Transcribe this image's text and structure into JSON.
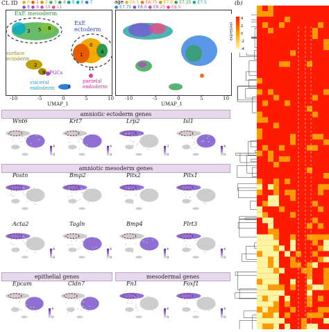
{
  "header": {
    "cl_id_label": "CL ID",
    "cluster_ids": [
      "0",
      "1",
      "2",
      "3",
      "4",
      "5",
      "6",
      "7",
      "8",
      "9",
      "10",
      "11"
    ],
    "age_label": "age",
    "ages": [
      "E6.5",
      "E6.75",
      "E7.0",
      "E7.25",
      "E7.5",
      "E7.75",
      "E8.0",
      "E8.25",
      "E8.5"
    ],
    "panel_b_label": "(b)"
  },
  "umap_left": {
    "regions": {
      "exe_mesoderm": "ExE mesoderm",
      "exe_ectoderm": "ExE ectoderm",
      "surface_ectoderm": "surface ectoderm",
      "pgcs": "PGCs",
      "visceral_endoderm": "visceral endoderm",
      "parietal_endoderm": "parietal endoderm"
    },
    "xticks": [
      "-10",
      "-5",
      "0",
      "5",
      "10"
    ],
    "yticks": [
      "10",
      "5",
      "0",
      "-5",
      "-10"
    ],
    "xlabel": "UMAP_1",
    "cluster_nums": [
      "0",
      "1",
      "2",
      "3",
      "4",
      "5",
      "6",
      "7",
      "8",
      "9",
      "10",
      "11"
    ]
  },
  "umap_right": {
    "xticks": [
      "-10",
      "-5",
      "0",
      "5",
      "10"
    ],
    "xlabel": "UMAP_1"
  },
  "sections": [
    {
      "title": "amniotic ectoderm genes",
      "genes": [
        "Wnt6",
        "Krt7",
        "Lrp2",
        "Isl1"
      ]
    },
    {
      "title": "amniotic mesoderm genes",
      "genes": [
        "Postn",
        "Bmp2",
        "Pitx2",
        "Pitx1",
        "Acta2",
        "Tagln",
        "Bmp4",
        "Flrt3"
      ]
    },
    {
      "title": "epithelial genes",
      "genes": [
        "Epcam",
        "Cldn7"
      ]
    },
    {
      "title": "mesodermal genes",
      "genes": [
        "Fn1",
        "Foxf1"
      ]
    }
  ],
  "colorbar_ticks": {
    "wnt6": [
      "4",
      "0"
    ],
    "krt7": [
      "4",
      "0"
    ],
    "lrp2": [
      "3",
      "0"
    ],
    "isl1": [
      "4",
      "0"
    ],
    "acta2": [
      "4",
      "0"
    ],
    "tagln": [
      "4",
      "0"
    ],
    "bmp4": [
      "4",
      "0"
    ],
    "flrt3": [
      "4",
      "0"
    ],
    "epcam": [
      "4",
      "0"
    ],
    "fn1": [
      "4",
      "0"
    ],
    "foxf1": [
      "4",
      "0"
    ]
  },
  "heatmap": {
    "legend_title": "expression",
    "legend_ticks": [
      "4",
      "2",
      "0",
      "-2",
      "-4"
    ],
    "colors": {
      "high": "#ff1a00",
      "mid": "#ff9a00",
      "low": "#fff5a0"
    }
  },
  "colors": {
    "header_bg": "#e8d8ec",
    "umap_purple": "#6a3fc4",
    "umap_gray": "#c8c8c8",
    "dashed_outline": "#8b1a3a"
  }
}
